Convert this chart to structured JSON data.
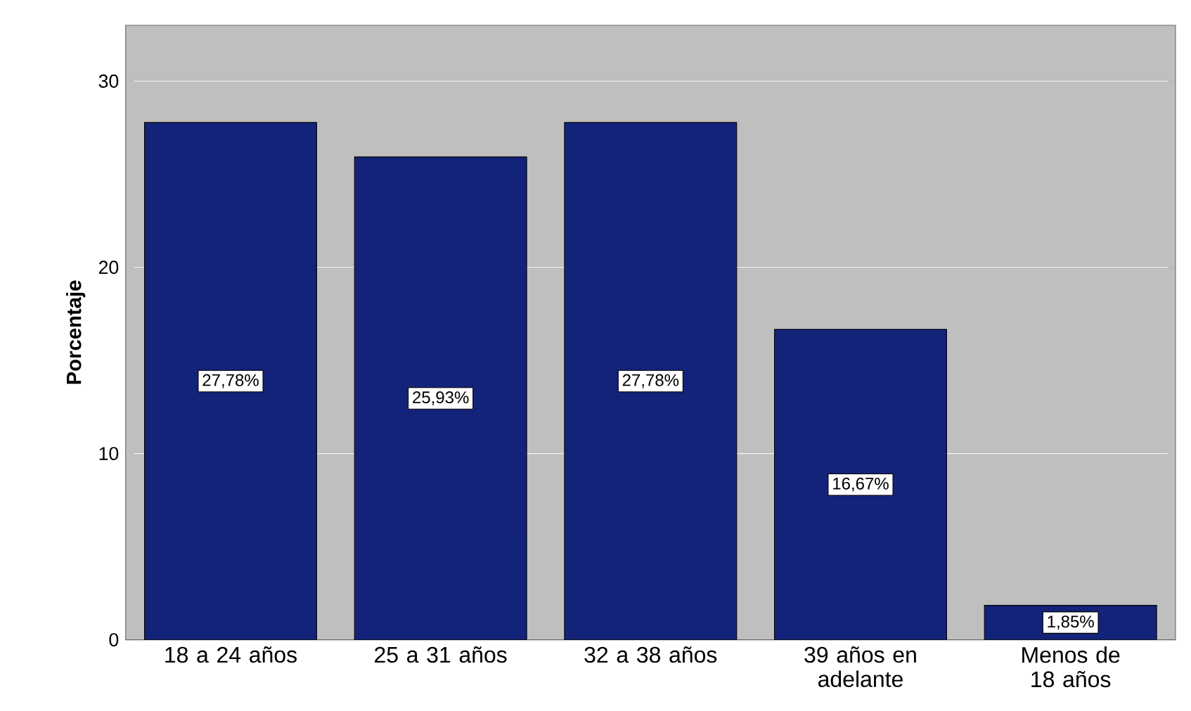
{
  "chart_data": {
    "type": "bar",
    "ylabel": "Porcentaje",
    "categories": [
      "18 a 24 años",
      "25 a 31 años",
      "32 a 38 años",
      "39 años en adelante",
      "Menos de 18 años"
    ],
    "values": [
      27.78,
      25.93,
      27.78,
      16.67,
      1.85
    ],
    "value_labels": [
      "27,78%",
      "25,93%",
      "27,78%",
      "16,67%",
      "1,85%"
    ],
    "color": "#13237a",
    "ylim": [
      0,
      33
    ],
    "yticks": [
      0,
      10,
      20,
      30
    ],
    "grid": "y"
  }
}
